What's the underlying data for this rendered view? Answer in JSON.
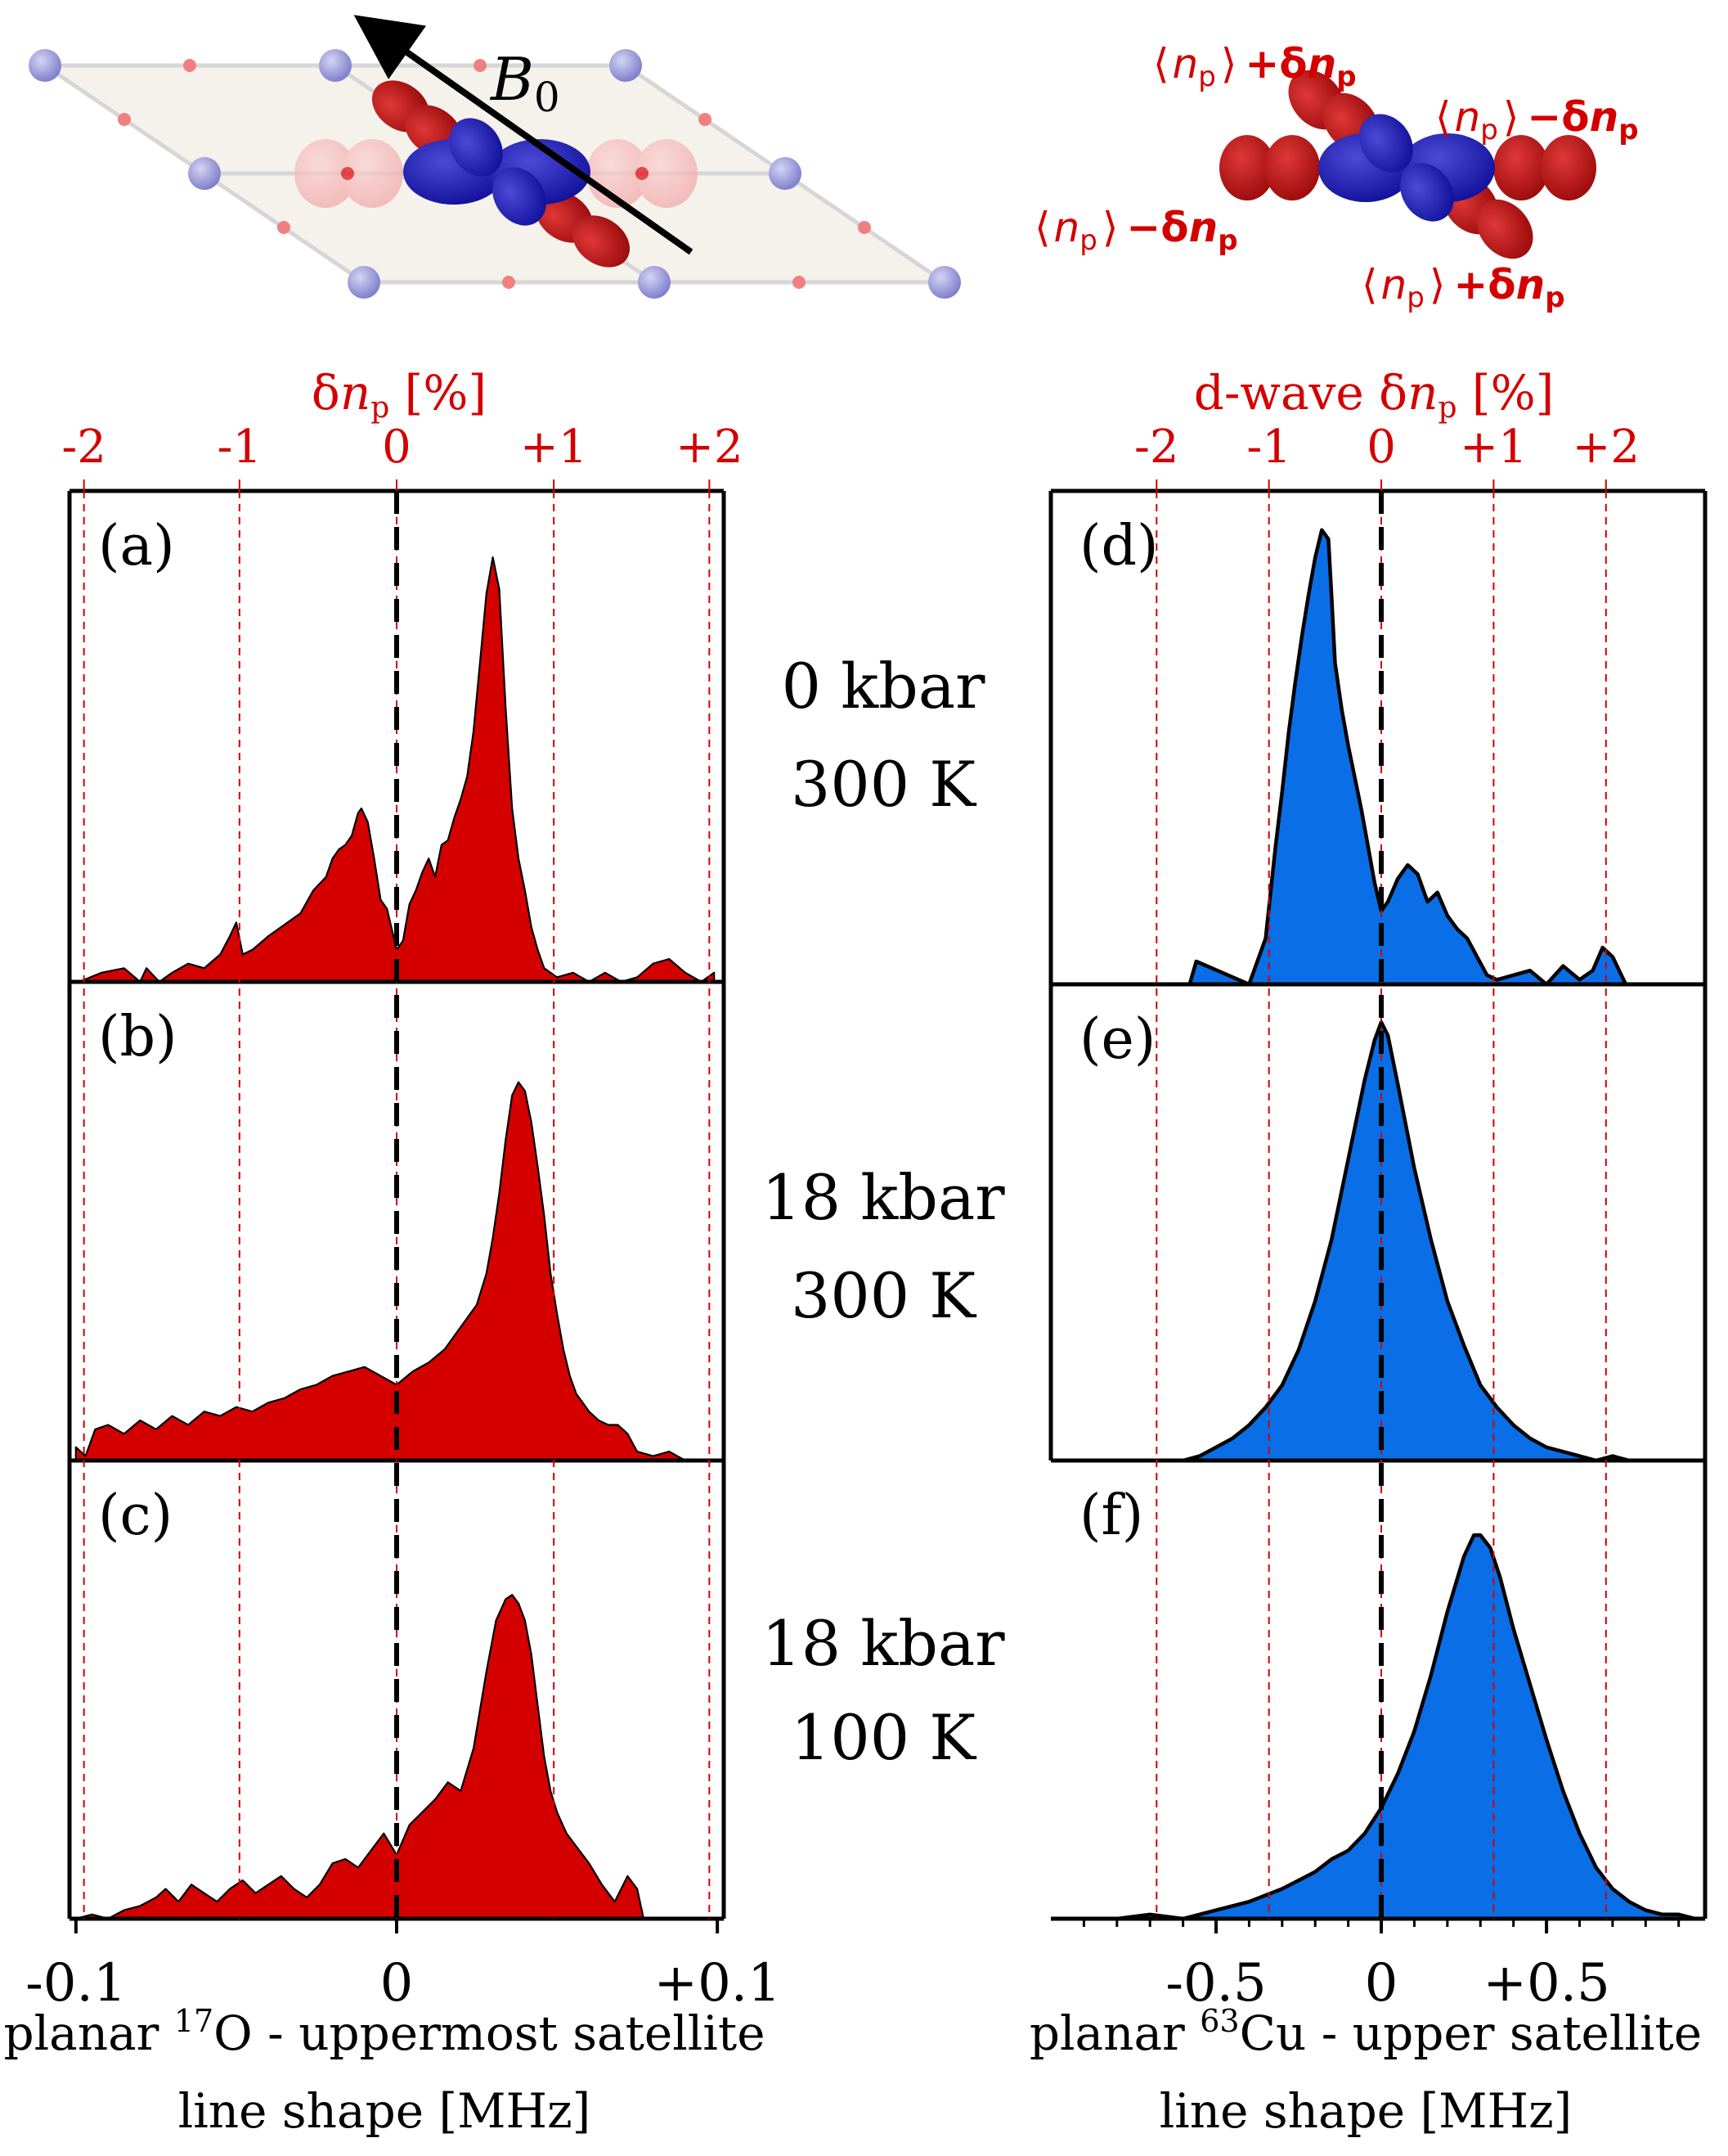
{
  "illustrations": {
    "lattice_label": "B",
    "lattice_subscript": "0",
    "orbital_labels": [
      {
        "open": "⟨",
        "n": "n",
        "p": "p",
        "close": "⟩",
        "sign": "+",
        "delta": "δ",
        "n2": "n",
        "p2": "p"
      },
      {
        "open": "⟨",
        "n": "n",
        "p": "p",
        "close": "⟩",
        "sign": "−",
        "delta": "δ",
        "n2": "n",
        "p2": "p"
      },
      {
        "open": "⟨",
        "n": "n",
        "p": "p",
        "close": "⟩",
        "sign": "−",
        "delta": "δ",
        "n2": "n",
        "p2": "p"
      },
      {
        "open": "⟨",
        "n": "n",
        "p": "p",
        "close": "⟩",
        "sign": "+",
        "delta": "δ",
        "n2": "n",
        "p2": "p"
      }
    ]
  },
  "colors": {
    "oxygen_fill": "#d40000",
    "copper_fill": "#0a6ee6",
    "accent_red": "#d40000",
    "axis": "#000000"
  },
  "conditions": [
    {
      "line1": "0 kbar",
      "line2": "300 K"
    },
    {
      "line1": "18 kbar",
      "line2": "300 K"
    },
    {
      "line1": "18 kbar",
      "line2": "100 K"
    }
  ],
  "chart_data": [
    {
      "type": "area",
      "nucleus": "17O",
      "title": "planar 17O uppermost satellite",
      "xlabel_prefix": "planar ",
      "xlabel_iso": "17",
      "xlabel_rest": "O - uppermost satellite",
      "xlabel_line2": "line shape [MHz]",
      "xlim": [
        -0.102,
        0.102
      ],
      "x_ticks": [
        -0.1,
        0,
        0.1
      ],
      "x_tick_labels": [
        "-0.1",
        "0",
        "+0.1"
      ],
      "top_axis": {
        "label_prefix": "δ",
        "label_n": "n",
        "label_sub": "p",
        "label_suffix": " [%]",
        "ticks_mhz": [
          -0.0975,
          -0.049,
          0,
          0.049,
          0.0975
        ],
        "tick_labels": [
          "-2",
          "-1",
          "0",
          "+1",
          "+2"
        ]
      },
      "reference_line_x": 0,
      "panels": [
        {
          "label": "(a)",
          "x": [
            -0.099,
            -0.092,
            -0.085,
            -0.08,
            -0.078,
            -0.074,
            -0.07,
            -0.065,
            -0.06,
            -0.055,
            -0.052,
            -0.05,
            -0.048,
            -0.045,
            -0.04,
            -0.036,
            -0.03,
            -0.026,
            -0.022,
            -0.02,
            -0.018,
            -0.016,
            -0.014,
            -0.012,
            -0.011,
            -0.009,
            -0.007,
            -0.005,
            -0.003,
            -0.001,
            0.0,
            0.002,
            0.004,
            0.006,
            0.008,
            0.01,
            0.012,
            0.014,
            0.016,
            0.018,
            0.02,
            0.022,
            0.024,
            0.026,
            0.028,
            0.03,
            0.032,
            0.034,
            0.036,
            0.038,
            0.04,
            0.042,
            0.044,
            0.046,
            0.05,
            0.055,
            0.06,
            0.065,
            0.07,
            0.075,
            0.08,
            0.085,
            0.09,
            0.095,
            0.099
          ],
          "y": [
            0,
            0.02,
            0.03,
            0.0,
            0.03,
            0.0,
            0.02,
            0.04,
            0.03,
            0.06,
            0.1,
            0.13,
            0.06,
            0.07,
            0.1,
            0.12,
            0.15,
            0.2,
            0.23,
            0.27,
            0.29,
            0.3,
            0.32,
            0.37,
            0.38,
            0.35,
            0.27,
            0.18,
            0.16,
            0.1,
            0.07,
            0.09,
            0.17,
            0.2,
            0.24,
            0.27,
            0.23,
            0.3,
            0.31,
            0.36,
            0.4,
            0.45,
            0.55,
            0.7,
            0.85,
            0.93,
            0.86,
            0.6,
            0.38,
            0.27,
            0.2,
            0.12,
            0.07,
            0.03,
            0.01,
            0.02,
            0.0,
            0.02,
            0.0,
            0.01,
            0.04,
            0.05,
            0.02,
            0.0,
            0.02
          ]
        },
        {
          "label": "(b)",
          "x": [
            -0.1,
            -0.097,
            -0.094,
            -0.09,
            -0.085,
            -0.08,
            -0.075,
            -0.07,
            -0.065,
            -0.06,
            -0.055,
            -0.05,
            -0.045,
            -0.04,
            -0.035,
            -0.03,
            -0.025,
            -0.02,
            -0.015,
            -0.01,
            -0.005,
            0.0,
            0.005,
            0.01,
            0.015,
            0.02,
            0.025,
            0.028,
            0.03,
            0.032,
            0.034,
            0.036,
            0.038,
            0.04,
            0.042,
            0.044,
            0.046,
            0.048,
            0.05,
            0.052,
            0.054,
            0.056,
            0.058,
            0.06,
            0.063,
            0.066,
            0.069,
            0.072,
            0.075,
            0.08,
            0.085,
            0.09
          ],
          "y": [
            0.03,
            0.01,
            0.07,
            0.08,
            0.06,
            0.09,
            0.07,
            0.1,
            0.08,
            0.11,
            0.1,
            0.12,
            0.11,
            0.13,
            0.14,
            0.16,
            0.17,
            0.19,
            0.2,
            0.21,
            0.19,
            0.17,
            0.2,
            0.22,
            0.25,
            0.3,
            0.35,
            0.42,
            0.5,
            0.6,
            0.72,
            0.82,
            0.85,
            0.83,
            0.76,
            0.66,
            0.55,
            0.42,
            0.33,
            0.25,
            0.19,
            0.15,
            0.13,
            0.11,
            0.09,
            0.08,
            0.08,
            0.06,
            0.02,
            0.01,
            0.02,
            0.0
          ]
        },
        {
          "label": "(c)",
          "x": [
            -0.1,
            -0.095,
            -0.09,
            -0.085,
            -0.08,
            -0.075,
            -0.072,
            -0.068,
            -0.064,
            -0.06,
            -0.056,
            -0.052,
            -0.048,
            -0.044,
            -0.04,
            -0.036,
            -0.032,
            -0.028,
            -0.024,
            -0.02,
            -0.016,
            -0.012,
            -0.008,
            -0.004,
            0.0,
            0.004,
            0.008,
            0.012,
            0.016,
            0.02,
            0.024,
            0.028,
            0.031,
            0.034,
            0.036,
            0.038,
            0.04,
            0.042,
            0.044,
            0.046,
            0.048,
            0.05,
            0.053,
            0.056,
            0.06,
            0.064,
            0.068,
            0.072,
            0.075,
            0.077
          ],
          "y": [
            0.0,
            0.01,
            0.0,
            0.02,
            0.03,
            0.05,
            0.07,
            0.04,
            0.08,
            0.06,
            0.04,
            0.07,
            0.09,
            0.06,
            0.08,
            0.1,
            0.07,
            0.05,
            0.08,
            0.13,
            0.14,
            0.12,
            0.16,
            0.2,
            0.15,
            0.22,
            0.25,
            0.28,
            0.32,
            0.3,
            0.4,
            0.58,
            0.7,
            0.75,
            0.76,
            0.74,
            0.7,
            0.62,
            0.5,
            0.38,
            0.3,
            0.25,
            0.2,
            0.17,
            0.13,
            0.08,
            0.04,
            0.1,
            0.07,
            0.0
          ]
        }
      ]
    },
    {
      "type": "area",
      "nucleus": "63Cu",
      "title": "planar 63Cu upper satellite",
      "xlabel_prefix": "planar ",
      "xlabel_iso": "63",
      "xlabel_rest": "Cu - upper satellite",
      "xlabel_line2": "line shape [MHz]",
      "xlim": [
        -1.0,
        0.98
      ],
      "x_ticks": [
        -0.5,
        0,
        0.5
      ],
      "x_tick_labels": [
        "-0.5",
        "0",
        "+0.5"
      ],
      "top_axis": {
        "label_prefix": "d-wave δ",
        "label_n": "n",
        "label_sub": "p",
        "label_suffix": " [%]",
        "ticks_mhz": [
          -0.68,
          -0.34,
          0,
          0.34,
          0.68
        ],
        "tick_labels": [
          "-2",
          "-1",
          "0",
          "+1",
          "+2"
        ]
      },
      "reference_line_x": 0,
      "panels": [
        {
          "label": "(d)",
          "x": [
            -0.58,
            -0.56,
            -0.4,
            -0.37,
            -0.35,
            -0.32,
            -0.3,
            -0.28,
            -0.26,
            -0.24,
            -0.22,
            -0.2,
            -0.18,
            -0.16,
            -0.15,
            -0.14,
            -0.12,
            -0.1,
            -0.08,
            -0.06,
            -0.04,
            -0.02,
            0.0,
            0.02,
            0.05,
            0.08,
            0.11,
            0.14,
            0.17,
            0.2,
            0.23,
            0.26,
            0.29,
            0.32,
            0.35,
            0.4,
            0.45,
            0.5,
            0.55,
            0.6,
            0.64,
            0.67,
            0.7,
            0.74,
            0.8
          ],
          "y": [
            0.0,
            0.05,
            0.0,
            0.06,
            0.1,
            0.3,
            0.42,
            0.55,
            0.66,
            0.76,
            0.85,
            0.93,
            0.99,
            0.97,
            0.84,
            0.7,
            0.6,
            0.52,
            0.45,
            0.38,
            0.3,
            0.22,
            0.16,
            0.18,
            0.23,
            0.26,
            0.24,
            0.18,
            0.2,
            0.15,
            0.12,
            0.1,
            0.06,
            0.02,
            0.01,
            0.02,
            0.03,
            0.0,
            0.04,
            0.01,
            0.03,
            0.08,
            0.06,
            0.0,
            0.0
          ],
          "lw": 3.2
        },
        {
          "label": "(e)",
          "x": [
            -0.6,
            -0.55,
            -0.5,
            -0.45,
            -0.4,
            -0.35,
            -0.3,
            -0.25,
            -0.2,
            -0.15,
            -0.1,
            -0.05,
            -0.02,
            0.0,
            0.02,
            0.05,
            0.1,
            0.15,
            0.2,
            0.25,
            0.3,
            0.35,
            0.4,
            0.45,
            0.5,
            0.55,
            0.6,
            0.65,
            0.7,
            0.75,
            0.8
          ],
          "y": [
            0.0,
            0.01,
            0.03,
            0.05,
            0.08,
            0.12,
            0.17,
            0.25,
            0.36,
            0.5,
            0.68,
            0.86,
            0.95,
            0.99,
            0.96,
            0.85,
            0.66,
            0.5,
            0.36,
            0.26,
            0.17,
            0.12,
            0.08,
            0.05,
            0.03,
            0.02,
            0.01,
            0.0,
            0.01,
            0.0,
            0.0
          ],
          "lw": 3.2
        },
        {
          "label": "(f)",
          "x": [
            -0.85,
            -0.8,
            -0.7,
            -0.6,
            -0.5,
            -0.4,
            -0.3,
            -0.25,
            -0.2,
            -0.15,
            -0.1,
            -0.05,
            0.0,
            0.05,
            0.1,
            0.15,
            0.2,
            0.25,
            0.28,
            0.3,
            0.33,
            0.36,
            0.4,
            0.45,
            0.5,
            0.55,
            0.6,
            0.65,
            0.7,
            0.75,
            0.8,
            0.85,
            0.9,
            0.95
          ],
          "y": [
            0.0,
            0.0,
            0.01,
            0.0,
            0.02,
            0.04,
            0.07,
            0.09,
            0.11,
            0.14,
            0.16,
            0.2,
            0.26,
            0.34,
            0.44,
            0.57,
            0.72,
            0.85,
            0.9,
            0.9,
            0.87,
            0.8,
            0.68,
            0.55,
            0.42,
            0.3,
            0.2,
            0.12,
            0.07,
            0.04,
            0.02,
            0.01,
            0.01,
            0.0
          ],
          "lw": 3.2
        }
      ]
    }
  ]
}
